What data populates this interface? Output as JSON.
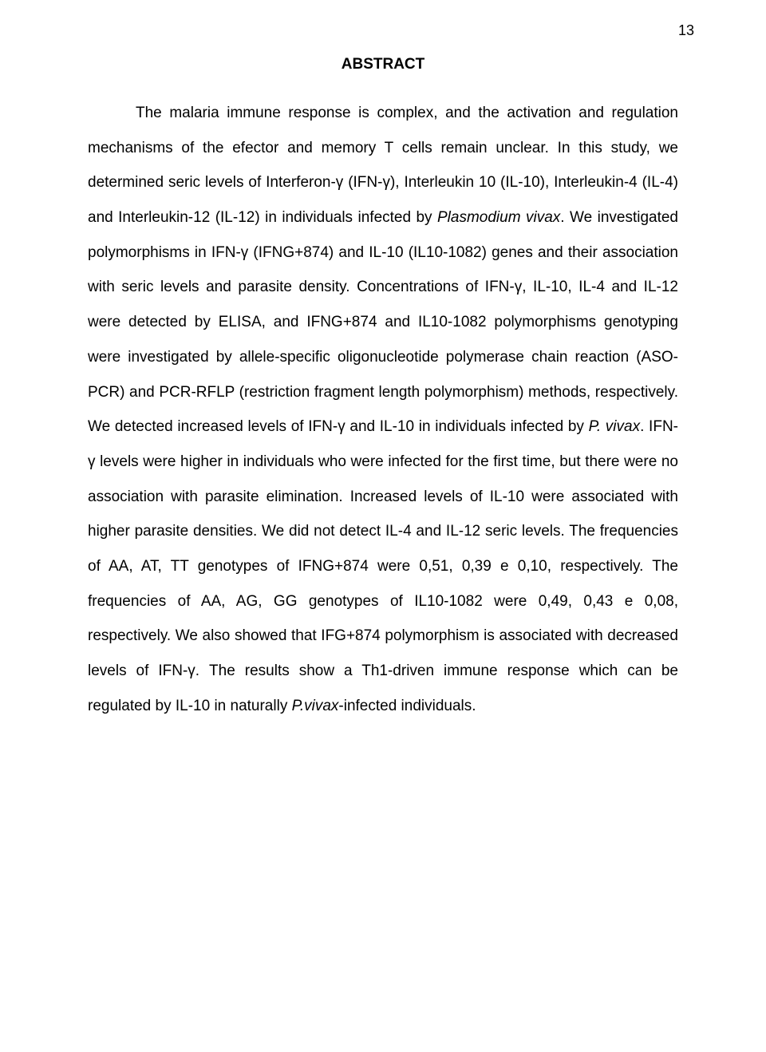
{
  "page_number": "13",
  "heading": "ABSTRACT",
  "para_1": "The malaria immune response is complex, and the activation and regulation mechanisms of the efector and memory T cells remain unclear. In this study, we determined seric levels of Interferon-γ (IFN-γ), Interleukin 10 (IL-10), Interleukin-4 (IL-4) and Interleukin-12 (IL-12) in individuals infected by ",
  "para_i1": "Plasmodium vivax",
  "para_2": ". We investigated polymorphisms in IFN-γ (IFNG+874) and IL-10 (IL10-1082) genes and their association with seric levels and parasite density. Concentrations of IFN-γ, IL-10, IL-4 and IL-12 were detected by ELISA, and IFNG+874 and IL10-1082 polymorphisms genotyping were investigated by allele-specific oligonucleotide polymerase chain reaction (ASO-PCR) and PCR-RFLP (restriction fragment length polymorphism) methods, respectively. We detected increased levels of IFN-γ and IL-10 in individuals infected by ",
  "para_i2": "P. vivax",
  "para_3": ". IFN-γ levels were higher in individuals who were infected for the first time, but there were no association with parasite elimination. Increased levels of IL-10 were associated with higher parasite densities. We did not detect IL-4 and IL-12 seric levels. The frequencies of AA, AT, TT genotypes of IFNG+874 were 0,51, 0,39 e 0,10, respectively. The frequencies of AA, AG, GG genotypes of IL10-1082 were 0,49, 0,43 e 0,08, respectively. We also showed that IFG+874 polymorphism is associated with decreased levels of IFN-γ. The results show a Th1-driven immune response which can be regulated by IL-10 in naturally ",
  "para_i3": "P.vivax",
  "para_4": "-infected individuals."
}
